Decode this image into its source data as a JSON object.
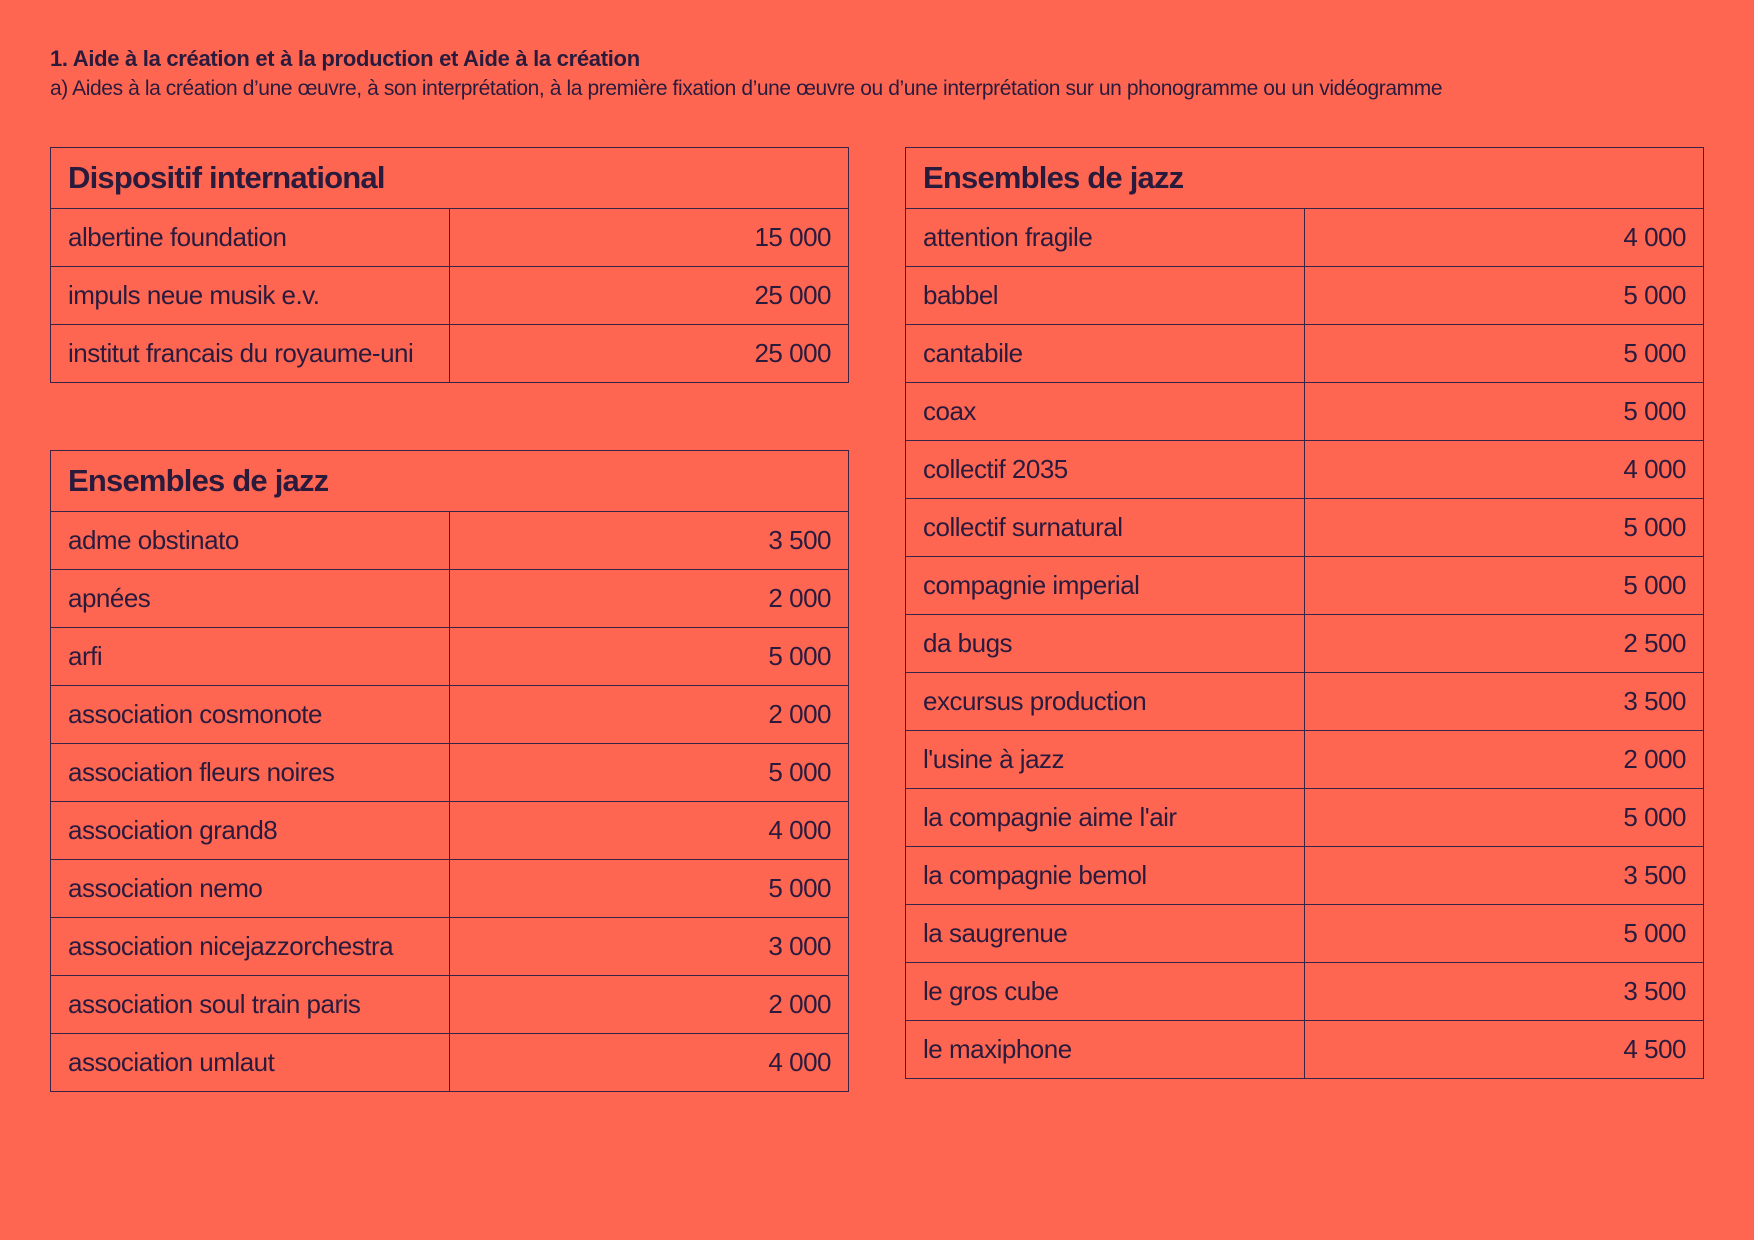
{
  "header": {
    "title": "1. Aide à la création et à la production et Aide à la création",
    "subtitle": "a) Aides à la création d’une œuvre, à son interprétation, à la première fixation d’une œuvre ou d’une interprétation sur un phonogramme ou un vidéogramme"
  },
  "tables": {
    "international": {
      "title": "Dispositif international",
      "rows": [
        {
          "name": "albertine foundation",
          "amount": "15 000"
        },
        {
          "name": "impuls neue musik e.v.",
          "amount": "25 000"
        },
        {
          "name": "institut francais du royaume-uni",
          "amount": "25 000"
        }
      ]
    },
    "jazz_left": {
      "title": "Ensembles de jazz",
      "rows": [
        {
          "name": "adme obstinato",
          "amount": "3 500"
        },
        {
          "name": "apnées",
          "amount": "2 000"
        },
        {
          "name": "arfi",
          "amount": "5 000"
        },
        {
          "name": "association cosmonote",
          "amount": "2 000"
        },
        {
          "name": "association fleurs noires",
          "amount": "5 000"
        },
        {
          "name": "association grand8",
          "amount": "4 000"
        },
        {
          "name": "association nemo",
          "amount": "5 000"
        },
        {
          "name": "association nicejazzorchestra",
          "amount": "3 000"
        },
        {
          "name": "association soul train paris",
          "amount": "2 000"
        },
        {
          "name": "association umlaut",
          "amount": "4 000"
        }
      ]
    },
    "jazz_right": {
      "title": "Ensembles de jazz",
      "rows": [
        {
          "name": "attention fragile",
          "amount": "4 000"
        },
        {
          "name": "babbel",
          "amount": "5 000"
        },
        {
          "name": "cantabile",
          "amount": "5 000"
        },
        {
          "name": "coax",
          "amount": "5 000"
        },
        {
          "name": "collectif 2035",
          "amount": "4 000"
        },
        {
          "name": "collectif surnatural",
          "amount": "5 000"
        },
        {
          "name": "compagnie imperial",
          "amount": "5 000"
        },
        {
          "name": "da bugs",
          "amount": "2 500"
        },
        {
          "name": "excursus production",
          "amount": "3 500"
        },
        {
          "name": "l'usine à jazz",
          "amount": "2 000"
        },
        {
          "name": "la compagnie aime l'air",
          "amount": "5 000"
        },
        {
          "name": "la compagnie bemol",
          "amount": "3 500"
        },
        {
          "name": "la saugrenue",
          "amount": "5 000"
        },
        {
          "name": "le gros cube",
          "amount": "3 500"
        },
        {
          "name": "le maxiphone",
          "amount": "4 500"
        }
      ]
    }
  }
}
